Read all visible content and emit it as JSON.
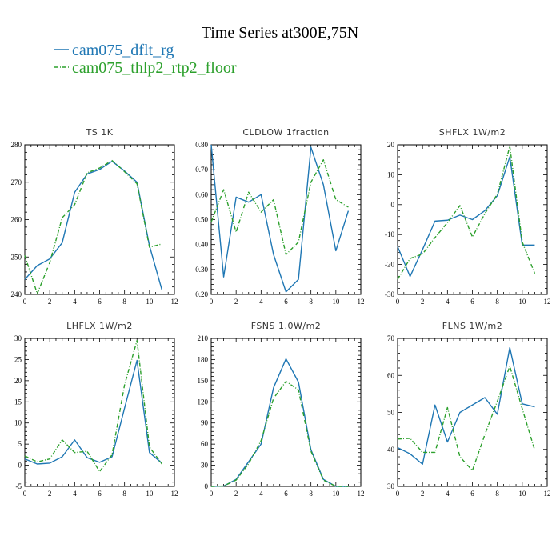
{
  "title": "Time Series at300E,75N",
  "colors": {
    "series1": "#1f77b4",
    "series2": "#2ca02c"
  },
  "legend": [
    {
      "label": "cam075_dflt_rg",
      "color": "#1f77b4",
      "dash": ""
    },
    {
      "label": "cam075_thlp2_rtp2_floor",
      "color": "#2ca02c",
      "dash": "5,2,1,2"
    }
  ],
  "chart_data": [
    {
      "type": "line",
      "title": "TS   1K",
      "x": [
        0,
        1,
        2,
        3,
        4,
        5,
        6,
        7,
        8,
        9,
        10,
        11
      ],
      "xlim": [
        0,
        12
      ],
      "xticks": [
        0,
        2,
        4,
        6,
        8,
        10,
        12
      ],
      "xticklabels": [
        "0",
        "2",
        "4",
        "6",
        "8",
        "10",
        "12"
      ],
      "ylim": [
        240,
        280
      ],
      "yticks": [
        240,
        250,
        260,
        270,
        280
      ],
      "yticklabels": [
        "240",
        "250",
        "260",
        "270",
        "280"
      ],
      "series": [
        {
          "name": "cam075_dflt_rg",
          "values": [
            244.0,
            247.7,
            249.5,
            253.8,
            267.3,
            272.2,
            273.4,
            275.6,
            273.0,
            270.0,
            253.0,
            241.2
          ]
        },
        {
          "name": "cam075_thlp2_rtp2_floor",
          "values": [
            250.4,
            240.2,
            248.5,
            260.5,
            264.0,
            272.5,
            273.8,
            275.8,
            272.8,
            269.6,
            252.6,
            253.5
          ]
        }
      ]
    },
    {
      "type": "line",
      "title": "CLDLOW   1fraction",
      "x": [
        0,
        1,
        2,
        3,
        4,
        5,
        6,
        7,
        8,
        9,
        10,
        11
      ],
      "xlim": [
        0,
        12
      ],
      "xticks": [
        0,
        2,
        4,
        6,
        8,
        10,
        12
      ],
      "xticklabels": [
        "0",
        "2",
        "4",
        "6",
        "8",
        "10",
        "12"
      ],
      "ylim": [
        0.2,
        0.8
      ],
      "yticks": [
        0.2,
        0.3,
        0.4,
        0.5,
        0.6,
        0.7,
        0.8
      ],
      "yticklabels": [
        "0.20",
        "0.30",
        "0.40",
        "0.50",
        "0.60",
        "0.70",
        "0.80"
      ],
      "series": [
        {
          "name": "cam075_dflt_rg",
          "values": [
            0.8,
            0.27,
            0.59,
            0.57,
            0.6,
            0.36,
            0.21,
            0.26,
            0.79,
            0.64,
            0.375,
            0.535
          ]
        },
        {
          "name": "cam075_thlp2_rtp2_floor",
          "values": [
            0.49,
            0.62,
            0.45,
            0.61,
            0.53,
            0.58,
            0.36,
            0.41,
            0.65,
            0.74,
            0.58,
            0.55
          ]
        }
      ]
    },
    {
      "type": "line",
      "title": "SHFLX   1W/m2",
      "x": [
        0,
        1,
        2,
        3,
        4,
        5,
        6,
        7,
        8,
        9,
        10,
        11
      ],
      "xlim": [
        0,
        12
      ],
      "xticks": [
        0,
        2,
        4,
        6,
        8,
        10,
        12
      ],
      "xticklabels": [
        "0",
        "2",
        "4",
        "6",
        "8",
        "10",
        "12"
      ],
      "ylim": [
        -30,
        20
      ],
      "yticks": [
        -30,
        -20,
        -10,
        0,
        10,
        20
      ],
      "yticklabels": [
        "-30",
        "-20",
        "-10",
        "0",
        "10",
        "20"
      ],
      "series": [
        {
          "name": "cam075_dflt_rg",
          "values": [
            -14,
            -24,
            -15,
            -5.5,
            -5.2,
            -3.5,
            -5,
            -2,
            3,
            16,
            -13.5,
            -13.5
          ]
        },
        {
          "name": "cam075_thlp2_rtp2_floor",
          "values": [
            -25,
            -18,
            -16.5,
            -11,
            -6,
            -0.3,
            -10.8,
            -3,
            3.5,
            19.5,
            -12.5,
            -23
          ]
        }
      ]
    },
    {
      "type": "line",
      "title": "LHFLX   1W/m2",
      "x": [
        0,
        1,
        2,
        3,
        4,
        5,
        6,
        7,
        8,
        9,
        10,
        11
      ],
      "xlim": [
        0,
        12
      ],
      "xticks": [
        0,
        2,
        4,
        6,
        8,
        10,
        12
      ],
      "xticklabels": [
        "0",
        "2",
        "4",
        "6",
        "8",
        "10",
        "12"
      ],
      "ylim": [
        -5,
        30
      ],
      "yticks": [
        -5,
        0,
        5,
        10,
        15,
        20,
        25,
        30
      ],
      "yticklabels": [
        "-5",
        "0",
        "5",
        "10",
        "15",
        "20",
        "25",
        "30"
      ],
      "series": [
        {
          "name": "cam075_dflt_rg",
          "values": [
            1.5,
            0.3,
            0.5,
            2,
            6,
            1.8,
            0.7,
            2,
            13.5,
            24.8,
            3,
            0.5
          ]
        },
        {
          "name": "cam075_thlp2_rtp2_floor",
          "values": [
            2.2,
            0.8,
            1.5,
            6,
            3,
            3.3,
            -1.5,
            2.5,
            19,
            29.5,
            4.3,
            0.3
          ]
        }
      ]
    },
    {
      "type": "line",
      "title": "FSNS   1.0W/m2",
      "x": [
        0,
        1,
        2,
        3,
        4,
        5,
        6,
        7,
        8,
        9,
        10,
        11
      ],
      "xlim": [
        0,
        12
      ],
      "xticks": [
        0,
        2,
        4,
        6,
        8,
        10,
        12
      ],
      "xticklabels": [
        "0",
        "2",
        "4",
        "6",
        "8",
        "10",
        "12"
      ],
      "ylim": [
        0,
        210
      ],
      "yticks": [
        0,
        30,
        60,
        90,
        120,
        150,
        180,
        210
      ],
      "yticklabels": [
        "0",
        "30",
        "60",
        "90",
        "120",
        "150",
        "180",
        "210"
      ],
      "series": [
        {
          "name": "cam075_dflt_rg",
          "values": [
            0,
            0.5,
            10,
            35,
            60,
            140,
            181,
            148,
            52,
            10,
            0,
            0
          ]
        },
        {
          "name": "cam075_thlp2_rtp2_floor",
          "values": [
            0,
            0.5,
            9,
            32,
            65,
            125,
            149,
            137,
            50,
            9,
            0,
            0
          ]
        }
      ]
    },
    {
      "type": "line",
      "title": "FLNS   1W/m2",
      "x": [
        0,
        1,
        2,
        3,
        4,
        5,
        6,
        7,
        8,
        9,
        10,
        11
      ],
      "xlim": [
        0,
        12
      ],
      "xticks": [
        0,
        2,
        4,
        6,
        8,
        10,
        12
      ],
      "xticklabels": [
        "0",
        "2",
        "4",
        "6",
        "8",
        "10",
        "12"
      ],
      "ylim": [
        30,
        70
      ],
      "yticks": [
        30,
        40,
        50,
        60,
        70
      ],
      "yticklabels": [
        "30",
        "40",
        "50",
        "60",
        "70"
      ],
      "series": [
        {
          "name": "cam075_dflt_rg",
          "values": [
            40.5,
            38.8,
            36,
            52,
            42,
            50,
            52,
            54,
            49.5,
            67.5,
            52.3,
            51.5
          ]
        },
        {
          "name": "cam075_thlp2_rtp2_floor",
          "values": [
            42.8,
            43,
            39.2,
            39.2,
            51.3,
            38,
            34.3,
            44,
            53,
            62.5,
            51,
            39.8
          ]
        }
      ]
    }
  ]
}
